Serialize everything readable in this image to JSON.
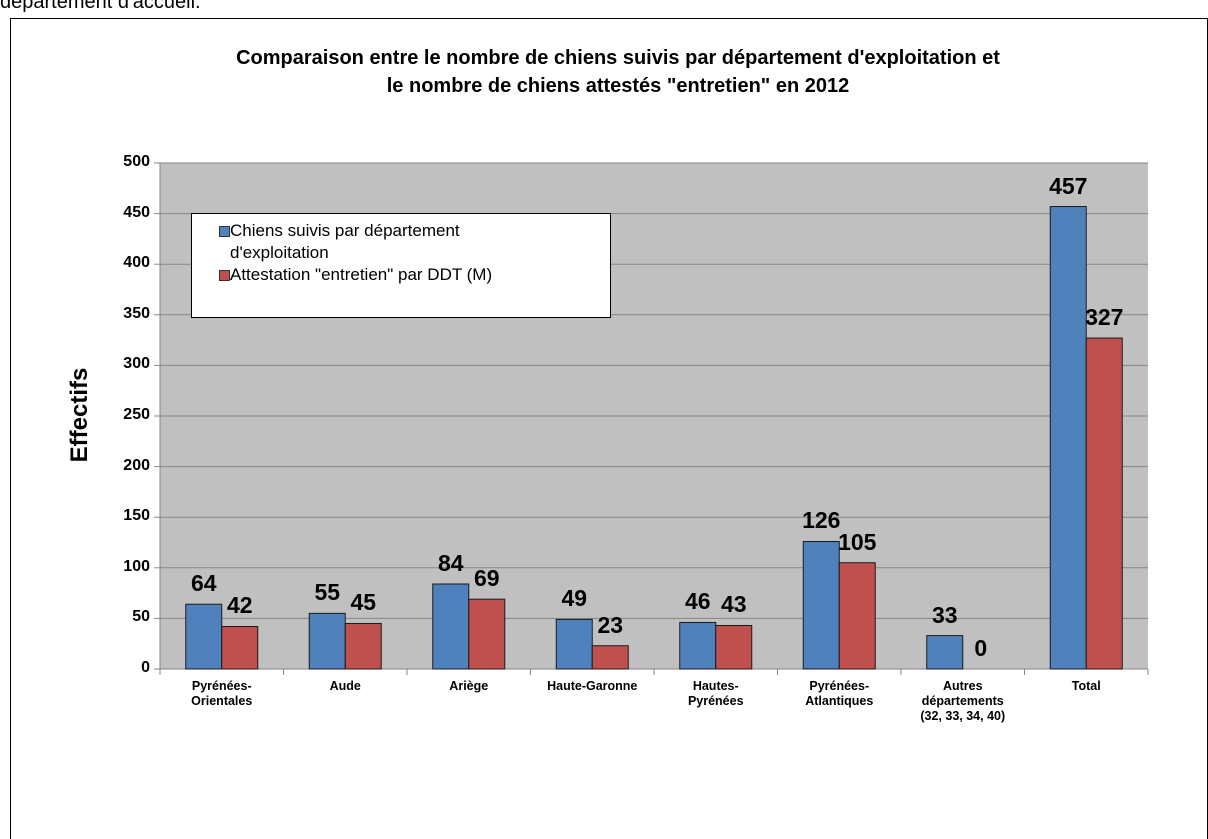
{
  "caption": "département d'accueil.",
  "chart_data": {
    "type": "bar",
    "title": "Comparaison entre le nombre de chiens suivis par département d'exploitation et\nle nombre de chiens attestés \"entretien\"  en 2012",
    "y_label": "Effectifs",
    "categories": [
      "Pyrénées-\nOrientales",
      "Aude",
      "Ariège",
      "Haute-Garonne",
      "Hautes-\nPyrénées",
      "Pyrénées-\nAtlantiques",
      "Autres\ndépartements\n(32, 33, 34, 40)",
      "Total"
    ],
    "series": [
      {
        "name": "Chiens suivis par département\nd'exploitation",
        "color": "#4f81bd",
        "values": [
          64,
          55,
          84,
          49,
          46,
          126,
          33,
          457
        ]
      },
      {
        "name": "Attestation \"entretien\" par DDT (M)",
        "color": "#c0504d",
        "values": [
          42,
          45,
          69,
          23,
          43,
          105,
          0,
          327
        ]
      }
    ],
    "ylim": [
      0,
      500
    ],
    "yticks": [
      0,
      50,
      100,
      150,
      200,
      250,
      300,
      350,
      400,
      450,
      500
    ],
    "grid": true,
    "legend": "upper-left"
  }
}
